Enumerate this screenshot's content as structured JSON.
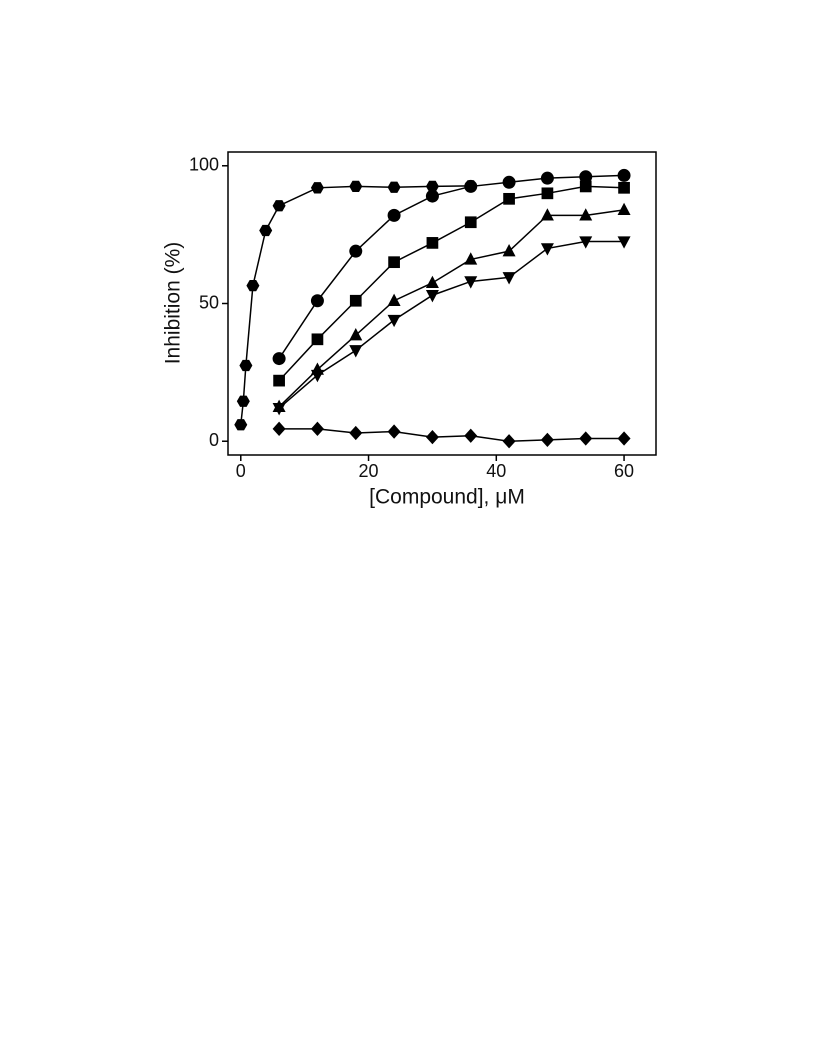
{
  "chart_data": {
    "type": "scatter",
    "xlabel": "[Compound], μM",
    "ylabel": "Inhibition (%)",
    "xlim": [
      -2,
      65
    ],
    "ylim": [
      -5,
      105
    ],
    "xticks": [
      0,
      20,
      40,
      60
    ],
    "yticks": [
      0,
      50,
      100
    ],
    "series": [
      {
        "marker": "hexagon",
        "color": "#000000",
        "x": [
          0,
          0.4,
          0.8,
          1.9,
          3.9,
          6,
          12,
          18,
          24,
          30,
          36
        ],
        "values": [
          6,
          14.5,
          27.5,
          56.5,
          76.5,
          85.5,
          92,
          92.5,
          92.2,
          92.5,
          92.7
        ]
      },
      {
        "marker": "circle",
        "color": "#000000",
        "x": [
          6,
          12,
          18,
          24,
          30,
          36,
          42,
          48,
          54,
          60
        ],
        "values": [
          30,
          51,
          69,
          82,
          89,
          92.5,
          94,
          95.5,
          96,
          96.5
        ]
      },
      {
        "marker": "square",
        "color": "#000000",
        "x": [
          6,
          12,
          18,
          24,
          30,
          36,
          42,
          48,
          54,
          60
        ],
        "values": [
          22,
          37,
          51,
          65,
          72,
          79.5,
          88,
          90,
          92.5,
          92
        ]
      },
      {
        "marker": "triangle-up",
        "color": "#000000",
        "x": [
          6,
          12,
          18,
          24,
          30,
          36,
          42,
          48,
          54,
          60
        ],
        "values": [
          12.5,
          26,
          38.5,
          51,
          57.5,
          66,
          69,
          82,
          82,
          84
        ]
      },
      {
        "marker": "triangle-down",
        "color": "#000000",
        "x": [
          6,
          12,
          18,
          24,
          30,
          36,
          42,
          48,
          54,
          60
        ],
        "values": [
          12,
          24,
          33,
          44,
          53,
          58,
          59.5,
          70,
          72.5,
          72.5
        ]
      },
      {
        "marker": "diamond",
        "color": "#000000",
        "x": [
          6,
          12,
          18,
          24,
          30,
          36,
          42,
          48,
          54,
          60
        ],
        "values": [
          4.5,
          4.5,
          3,
          3.5,
          1.5,
          2,
          0,
          0.5,
          1,
          1
        ]
      }
    ]
  }
}
